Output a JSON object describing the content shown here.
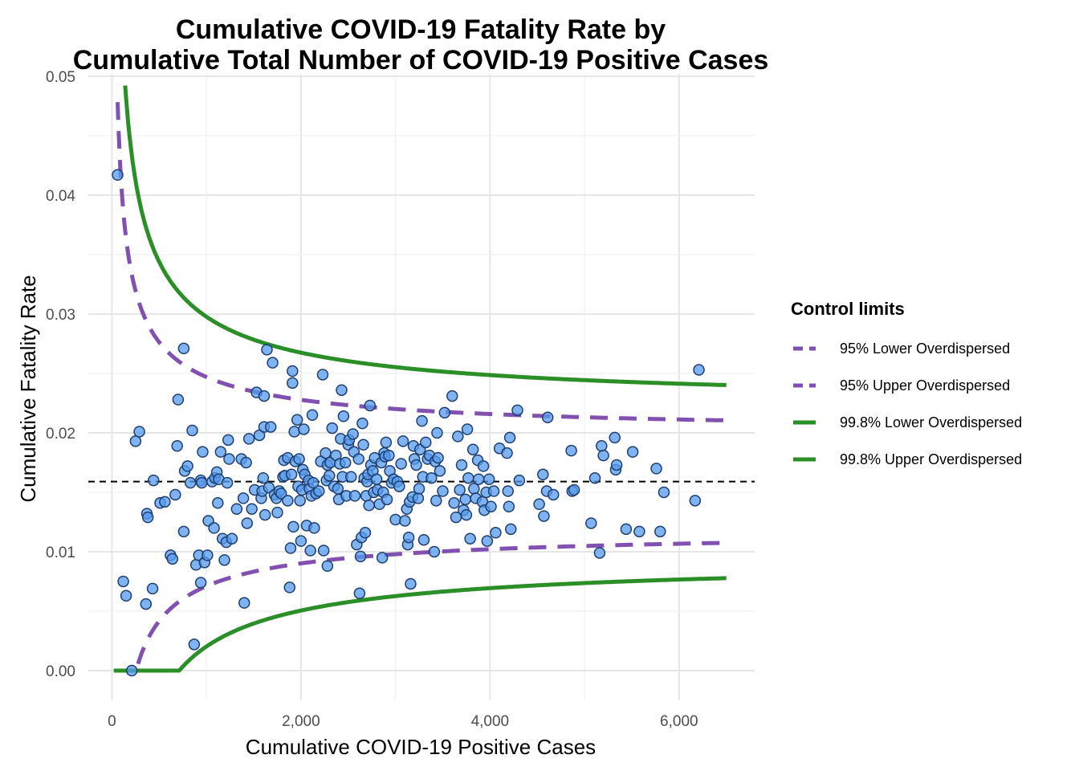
{
  "chart_data": {
    "type": "scatter",
    "title_lines": [
      "Cumulative COVID-19 Fatality Rate by",
      "Cumulative Total Number of COVID-19 Positive Cases"
    ],
    "xlabel": "Cumulative COVID-19 Positive Cases",
    "ylabel": "Cumulative Fatality Rate",
    "xlim": [
      -250,
      6800
    ],
    "ylim": [
      -0.0025,
      0.0502
    ],
    "x_ticks": [
      0,
      2000,
      4000,
      6000
    ],
    "x_tick_labels": [
      "0",
      "2,000",
      "4,000",
      "6,000"
    ],
    "y_ticks": [
      0,
      0.01,
      0.02,
      0.03,
      0.04,
      0.05
    ],
    "y_tick_labels": [
      "0.00",
      "0.01",
      "0.02",
      "0.03",
      "0.04",
      "0.05"
    ],
    "grid": true,
    "reference_line": {
      "y": 0.0159,
      "style": "dashed",
      "color": "#000000"
    },
    "point_style": {
      "fill": "#5599ee",
      "stroke": "#1d3f6e",
      "opacity": 0.75
    },
    "points": [
      [
        60,
        0.0417
      ],
      [
        120,
        0.0075
      ],
      [
        150,
        0.0063
      ],
      [
        210,
        0.0
      ],
      [
        250,
        0.0193
      ],
      [
        290,
        0.0201
      ],
      [
        360,
        0.0056
      ],
      [
        370,
        0.0132
      ],
      [
        380,
        0.0129
      ],
      [
        430,
        0.0069
      ],
      [
        440,
        0.016
      ],
      [
        510,
        0.0141
      ],
      [
        560,
        0.0142
      ],
      [
        620,
        0.0097
      ],
      [
        640,
        0.0094
      ],
      [
        670,
        0.0148
      ],
      [
        690,
        0.0189
      ],
      [
        700,
        0.0228
      ],
      [
        760,
        0.0271
      ],
      [
        760,
        0.0117
      ],
      [
        770,
        0.0168
      ],
      [
        800,
        0.0172
      ],
      [
        830,
        0.0158
      ],
      [
        850,
        0.0202
      ],
      [
        870,
        0.0022
      ],
      [
        890,
        0.0089
      ],
      [
        920,
        0.0097
      ],
      [
        940,
        0.0074
      ],
      [
        940,
        0.016
      ],
      [
        950,
        0.0158
      ],
      [
        960,
        0.0184
      ],
      [
        980,
        0.0091
      ],
      [
        1010,
        0.0097
      ],
      [
        1020,
        0.0126
      ],
      [
        1060,
        0.0159
      ],
      [
        1080,
        0.012
      ],
      [
        1090,
        0.0162
      ],
      [
        1110,
        0.0167
      ],
      [
        1120,
        0.0141
      ],
      [
        1130,
        0.0161
      ],
      [
        1150,
        0.0184
      ],
      [
        1170,
        0.0111
      ],
      [
        1190,
        0.0093
      ],
      [
        1210,
        0.0108
      ],
      [
        1220,
        0.0158
      ],
      [
        1230,
        0.0194
      ],
      [
        1240,
        0.0178
      ],
      [
        1270,
        0.0111
      ],
      [
        1320,
        0.0136
      ],
      [
        1370,
        0.0178
      ],
      [
        1390,
        0.0145
      ],
      [
        1400,
        0.0057
      ],
      [
        1420,
        0.0175
      ],
      [
        1430,
        0.0124
      ],
      [
        1450,
        0.0195
      ],
      [
        1480,
        0.0136
      ],
      [
        1510,
        0.0152
      ],
      [
        1530,
        0.0234
      ],
      [
        1560,
        0.0198
      ],
      [
        1580,
        0.0145
      ],
      [
        1590,
        0.0151
      ],
      [
        1600,
        0.0162
      ],
      [
        1610,
        0.0205
      ],
      [
        1610,
        0.0231
      ],
      [
        1620,
        0.0131
      ],
      [
        1640,
        0.027
      ],
      [
        1660,
        0.0154
      ],
      [
        1680,
        0.0205
      ],
      [
        1700,
        0.0259
      ],
      [
        1720,
        0.0148
      ],
      [
        1740,
        0.0145
      ],
      [
        1750,
        0.0133
      ],
      [
        1770,
        0.0151
      ],
      [
        1790,
        0.0149
      ],
      [
        1810,
        0.0163
      ],
      [
        1820,
        0.0177
      ],
      [
        1830,
        0.0164
      ],
      [
        1860,
        0.0143
      ],
      [
        1860,
        0.0179
      ],
      [
        1880,
        0.007
      ],
      [
        1890,
        0.0103
      ],
      [
        1900,
        0.0165
      ],
      [
        1910,
        0.0242
      ],
      [
        1910,
        0.0252
      ],
      [
        1920,
        0.0121
      ],
      [
        1930,
        0.0201
      ],
      [
        1940,
        0.0176
      ],
      [
        1960,
        0.0211
      ],
      [
        1970,
        0.0155
      ],
      [
        1980,
        0.0178
      ],
      [
        1990,
        0.0143
      ],
      [
        2000,
        0.0109
      ],
      [
        2010,
        0.0152
      ],
      [
        2020,
        0.0169
      ],
      [
        2030,
        0.0203
      ],
      [
        2040,
        0.0165
      ],
      [
        2060,
        0.0122
      ],
      [
        2080,
        0.016
      ],
      [
        2090,
        0.0153
      ],
      [
        2100,
        0.0101
      ],
      [
        2110,
        0.0147
      ],
      [
        2120,
        0.0215
      ],
      [
        2130,
        0.0158
      ],
      [
        2140,
        0.012
      ],
      [
        2160,
        0.0149
      ],
      [
        2190,
        0.0151
      ],
      [
        2210,
        0.0176
      ],
      [
        2230,
        0.0249
      ],
      [
        2240,
        0.0101
      ],
      [
        2260,
        0.0183
      ],
      [
        2270,
        0.016
      ],
      [
        2280,
        0.0088
      ],
      [
        2280,
        0.0173
      ],
      [
        2300,
        0.0164
      ],
      [
        2310,
        0.0175
      ],
      [
        2330,
        0.0204
      ],
      [
        2350,
        0.0155
      ],
      [
        2370,
        0.0181
      ],
      [
        2390,
        0.0153
      ],
      [
        2400,
        0.0144
      ],
      [
        2410,
        0.0174
      ],
      [
        2420,
        0.0195
      ],
      [
        2430,
        0.0236
      ],
      [
        2440,
        0.0163
      ],
      [
        2450,
        0.0214
      ],
      [
        2470,
        0.0175
      ],
      [
        2480,
        0.0147
      ],
      [
        2500,
        0.019
      ],
      [
        2510,
        0.0194
      ],
      [
        2530,
        0.0163
      ],
      [
        2550,
        0.0199
      ],
      [
        2560,
        0.0184
      ],
      [
        2570,
        0.0147
      ],
      [
        2590,
        0.0106
      ],
      [
        2610,
        0.0178
      ],
      [
        2620,
        0.0065
      ],
      [
        2630,
        0.0096
      ],
      [
        2640,
        0.0112
      ],
      [
        2650,
        0.0208
      ],
      [
        2660,
        0.019
      ],
      [
        2670,
        0.0162
      ],
      [
        2680,
        0.0116
      ],
      [
        2690,
        0.0147
      ],
      [
        2700,
        0.0159
      ],
      [
        2710,
        0.0165
      ],
      [
        2720,
        0.0139
      ],
      [
        2730,
        0.0223
      ],
      [
        2740,
        0.0173
      ],
      [
        2760,
        0.0168
      ],
      [
        2770,
        0.015
      ],
      [
        2780,
        0.0179
      ],
      [
        2800,
        0.0161
      ],
      [
        2810,
        0.0152
      ],
      [
        2830,
        0.014
      ],
      [
        2850,
        0.0175
      ],
      [
        2860,
        0.0095
      ],
      [
        2870,
        0.015
      ],
      [
        2880,
        0.0183
      ],
      [
        2890,
        0.018
      ],
      [
        2900,
        0.0192
      ],
      [
        2910,
        0.0144
      ],
      [
        2930,
        0.0181
      ],
      [
        2940,
        0.0168
      ],
      [
        2960,
        0.0158
      ],
      [
        2980,
        0.0161
      ],
      [
        3000,
        0.0127
      ],
      [
        3020,
        0.0159
      ],
      [
        3040,
        0.0155
      ],
      [
        3060,
        0.0174
      ],
      [
        3080,
        0.0193
      ],
      [
        3100,
        0.0126
      ],
      [
        3120,
        0.0136
      ],
      [
        3130,
        0.0106
      ],
      [
        3140,
        0.0112
      ],
      [
        3150,
        0.0142
      ],
      [
        3160,
        0.0073
      ],
      [
        3180,
        0.0146
      ],
      [
        3190,
        0.0189
      ],
      [
        3200,
        0.0178
      ],
      [
        3220,
        0.0173
      ],
      [
        3240,
        0.0145
      ],
      [
        3250,
        0.0153
      ],
      [
        3260,
        0.0186
      ],
      [
        3280,
        0.021
      ],
      [
        3290,
        0.0163
      ],
      [
        3300,
        0.011
      ],
      [
        3320,
        0.0192
      ],
      [
        3340,
        0.0178
      ],
      [
        3360,
        0.0181
      ],
      [
        3380,
        0.0162
      ],
      [
        3410,
        0.01
      ],
      [
        3420,
        0.0176
      ],
      [
        3430,
        0.0143
      ],
      [
        3440,
        0.02
      ],
      [
        3450,
        0.0179
      ],
      [
        3470,
        0.0168
      ],
      [
        3500,
        0.0151
      ],
      [
        3520,
        0.0217
      ],
      [
        3600,
        0.0231
      ],
      [
        3620,
        0.0141
      ],
      [
        3640,
        0.0129
      ],
      [
        3660,
        0.0197
      ],
      [
        3680,
        0.0152
      ],
      [
        3700,
        0.0173
      ],
      [
        3720,
        0.0135
      ],
      [
        3740,
        0.0144
      ],
      [
        3750,
        0.0131
      ],
      [
        3760,
        0.0203
      ],
      [
        3770,
        0.0162
      ],
      [
        3790,
        0.0111
      ],
      [
        3820,
        0.0186
      ],
      [
        3830,
        0.0153
      ],
      [
        3850,
        0.0145
      ],
      [
        3870,
        0.0177
      ],
      [
        3880,
        0.0161
      ],
      [
        3920,
        0.0142
      ],
      [
        3930,
        0.0172
      ],
      [
        3940,
        0.0135
      ],
      [
        3960,
        0.015
      ],
      [
        3970,
        0.0109
      ],
      [
        3990,
        0.0161
      ],
      [
        4010,
        0.0138
      ],
      [
        4040,
        0.0151
      ],
      [
        4060,
        0.0116
      ],
      [
        4100,
        0.0187
      ],
      [
        4180,
        0.0183
      ],
      [
        4190,
        0.0151
      ],
      [
        4200,
        0.0138
      ],
      [
        4210,
        0.0196
      ],
      [
        4220,
        0.0119
      ],
      [
        4290,
        0.0219
      ],
      [
        4310,
        0.016
      ],
      [
        4520,
        0.014
      ],
      [
        4560,
        0.0165
      ],
      [
        4570,
        0.013
      ],
      [
        4600,
        0.0151
      ],
      [
        4610,
        0.0213
      ],
      [
        4670,
        0.0148
      ],
      [
        4860,
        0.0185
      ],
      [
        4870,
        0.0151
      ],
      [
        4890,
        0.0152
      ],
      [
        5070,
        0.0124
      ],
      [
        5110,
        0.0162
      ],
      [
        5160,
        0.0099
      ],
      [
        5180,
        0.0189
      ],
      [
        5200,
        0.0181
      ],
      [
        5320,
        0.0196
      ],
      [
        5330,
        0.0169
      ],
      [
        5340,
        0.0173
      ],
      [
        5440,
        0.0119
      ],
      [
        5510,
        0.0184
      ],
      [
        5580,
        0.0117
      ],
      [
        5760,
        0.017
      ],
      [
        5800,
        0.0117
      ],
      [
        5840,
        0.015
      ],
      [
        6170,
        0.0143
      ],
      [
        6210,
        0.0253
      ]
    ],
    "control_limits": {
      "target": 0.0159,
      "z95": 1.96,
      "z998": 3.09,
      "overdispersion_tau2": 4.5e-06
    },
    "series": [
      {
        "name": "95% Lower Overdispersed",
        "color": "#8150b0",
        "style": "dashed"
      },
      {
        "name": "95% Upper Overdispersed",
        "color": "#8150b0",
        "style": "dashed"
      },
      {
        "name": "99.8% Lower Overdispersed",
        "color": "#2a8f26",
        "style": "solid"
      },
      {
        "name": "99.8% Upper Overdispersed",
        "color": "#2a8f26",
        "style": "solid"
      }
    ],
    "legend": {
      "title": "Control limits",
      "placement": "right"
    }
  }
}
